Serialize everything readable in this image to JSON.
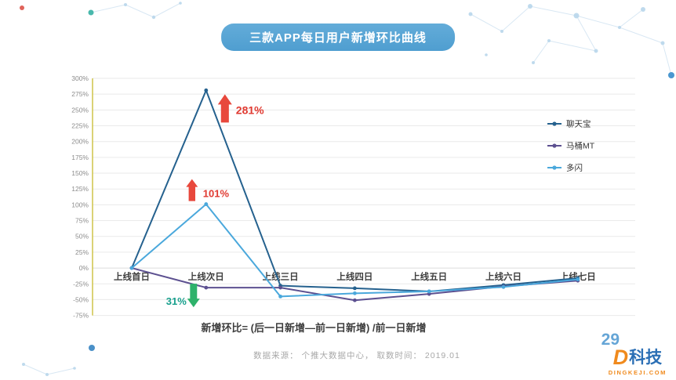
{
  "page": {
    "title": "三款APP每日用户新增环比曲线",
    "formula": "新增环比= (后一日新增—前一日新增) /前一日新增",
    "source": "数据来源： 个推大数据中心， 取数时间： 2019.01",
    "page_number": "29",
    "logo": {
      "mark": "D",
      "text": "科技",
      "domain": "DINGKEJI.COM"
    }
  },
  "chart_data": {
    "type": "line",
    "categories": [
      "上线首日",
      "上线次日",
      "上线三日",
      "上线四日",
      "上线五日",
      "上线六日",
      "上线七日"
    ],
    "series": [
      {
        "name": "聊天宝",
        "color": "#25618e",
        "values": [
          0,
          281,
          -28,
          -32,
          -37,
          -27,
          -16
        ]
      },
      {
        "name": "马桶MT",
        "color": "#5c5090",
        "values": [
          0,
          -31,
          -31,
          -51,
          -41,
          -29,
          -20
        ]
      },
      {
        "name": "多闪",
        "color": "#4aa8dc",
        "values": [
          0,
          101,
          -45,
          -40,
          -37,
          -30,
          -18
        ]
      }
    ],
    "ylim": [
      -75,
      300
    ],
    "ytick_step": 25,
    "ytick_format": "percent",
    "grid": true,
    "legend_position": "right",
    "annotations": [
      {
        "text": "281%",
        "arrow": "up",
        "series": 0,
        "index": 1,
        "arrow_color": "#e8483c",
        "text_color": "#e03a31"
      },
      {
        "text": "101%",
        "arrow": "up",
        "series": 2,
        "index": 1,
        "arrow_color": "#e8483c",
        "text_color": "#e03a31"
      },
      {
        "text": "31%",
        "arrow": "down",
        "series": 1,
        "index": 1,
        "arrow_color": "#2eb26b",
        "text_color": "#18a08d"
      }
    ]
  }
}
